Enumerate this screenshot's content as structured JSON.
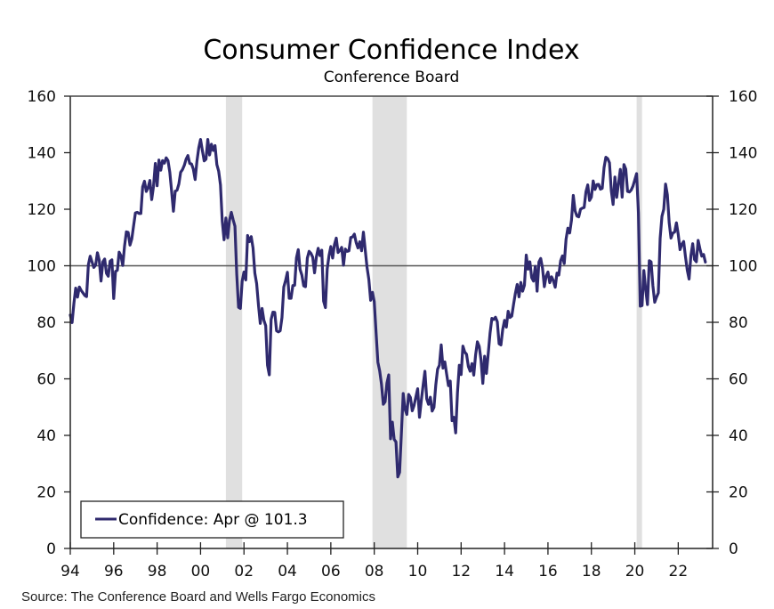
{
  "chart_data": {
    "type": "line",
    "title": "Consumer Confidence Index",
    "subtitle": "Conference Board",
    "source": "Source: The Conference Board and Wells Fargo Economics",
    "xlabel": "",
    "ylabel": "",
    "ylim": [
      0,
      160
    ],
    "yticks": [
      0,
      20,
      40,
      60,
      80,
      100,
      120,
      140,
      160
    ],
    "ytick_labels": [
      "0",
      "20",
      "40",
      "60",
      "80",
      "100",
      "120",
      "140",
      "160"
    ],
    "xlim": [
      "1994-01",
      "2023-08"
    ],
    "xticks": [
      1994,
      1996,
      1998,
      2000,
      2002,
      2004,
      2006,
      2008,
      2010,
      2012,
      2014,
      2016,
      2018,
      2020,
      2022
    ],
    "xtick_labels": [
      "94",
      "96",
      "98",
      "00",
      "02",
      "04",
      "06",
      "08",
      "10",
      "12",
      "14",
      "16",
      "18",
      "20",
      "22"
    ],
    "reference_line": 100,
    "grid": false,
    "dual_y_axis": true,
    "legend": {
      "position": "bottom-left",
      "label": "Confidence: Apr @ 101.3"
    },
    "recessions": [
      {
        "start": "2001-03",
        "end": "2001-11"
      },
      {
        "start": "2007-12",
        "end": "2009-06"
      },
      {
        "start": "2020-02",
        "end": "2020-04"
      }
    ],
    "colors": {
      "series": "#2f2a6e",
      "recession": "#e0e0e0",
      "axis": "#222222"
    },
    "series": [
      {
        "name": "Confidence",
        "start": "1994-01",
        "frequency": "monthly",
        "values": [
          82.6,
          79.9,
          86.7,
          92.1,
          88.9,
          92.5,
          91.3,
          90.4,
          89.5,
          89.1,
          100.4,
          103.4,
          101.4,
          99.4,
          100.2,
          104.6,
          102.0,
          94.6,
          101.4,
          102.4,
          97.3,
          96.3,
          101.6,
          102.1,
          88.4,
          98.0,
          98.4,
          104.8,
          103.5,
          100.1,
          107.0,
          112.0,
          111.8,
          107.3,
          109.5,
          114.2,
          118.7,
          118.9,
          118.5,
          118.5,
          127.9,
          129.9,
          126.3,
          127.6,
          130.2,
          123.4,
          128.1,
          136.2,
          128.3,
          137.4,
          133.8,
          137.2,
          136.3,
          138.2,
          137.2,
          133.1,
          126.4,
          119.3,
          126.4,
          126.7,
          128.9,
          133.1,
          134.0,
          135.5,
          137.7,
          139.0,
          136.2,
          136.0,
          134.2,
          130.5,
          137.0,
          141.7,
          144.7,
          140.8,
          137.1,
          137.7,
          144.7,
          139.2,
          143.0,
          140.8,
          142.5,
          135.8,
          133.5,
          128.6,
          115.7,
          109.2,
          116.9,
          109.9,
          116.1,
          118.9,
          116.3,
          114.0,
          97.0,
          85.3,
          84.9,
          94.6,
          97.8,
          95.0,
          110.7,
          108.5,
          110.3,
          106.3,
          97.4,
          93.7,
          86.1,
          79.6,
          84.9,
          80.7,
          78.8,
          64.8,
          61.4,
          81.0,
          83.6,
          83.5,
          77.0,
          76.6,
          77.0,
          81.7,
          92.5,
          94.8,
          97.7,
          88.5,
          88.5,
          93.0,
          93.1,
          102.8,
          105.7,
          98.7,
          96.7,
          92.9,
          92.6,
          102.7,
          105.1,
          104.4,
          103.0,
          97.5,
          103.1,
          106.2,
          103.6,
          105.5,
          87.5,
          85.2,
          98.9,
          103.6,
          106.8,
          102.7,
          107.5,
          109.8,
          104.7,
          105.4,
          106.5,
          100.2,
          105.9,
          105.1,
          105.3,
          110.0,
          110.2,
          111.2,
          108.2,
          106.3,
          108.5,
          105.3,
          111.9,
          105.6,
          99.5,
          95.2,
          87.8,
          90.6,
          87.3,
          76.4,
          65.9,
          62.8,
          58.1,
          51.0,
          51.9,
          58.5,
          61.4,
          38.8,
          44.7,
          38.6,
          37.7,
          25.3,
          26.9,
          40.8,
          54.8,
          49.3,
          47.4,
          54.5,
          53.4,
          48.7,
          50.6,
          53.6,
          56.5,
          46.4,
          52.3,
          57.7,
          62.7,
          52.9,
          51.0,
          53.5,
          48.6,
          49.9,
          57.8,
          63.4,
          64.8,
          72.0,
          63.8,
          66.0,
          61.7,
          57.6,
          59.2,
          45.2,
          46.4,
          40.9,
          55.2,
          64.8,
          61.5,
          71.6,
          69.5,
          68.7,
          64.4,
          62.7,
          65.4,
          61.3,
          68.4,
          73.1,
          71.5,
          66.7,
          58.4,
          68.0,
          61.9,
          69.0,
          76.2,
          81.4,
          81.0,
          81.8,
          80.2,
          72.4,
          72.0,
          77.5,
          80.7,
          78.3,
          83.9,
          81.7,
          82.2,
          86.4,
          90.3,
          93.4,
          89.0,
          94.1,
          91.0,
          93.1,
          103.8,
          98.8,
          101.4,
          95.8,
          94.6,
          99.8,
          91.0,
          101.3,
          102.6,
          99.1,
          92.6,
          96.3,
          97.8,
          94.0,
          96.1,
          94.7,
          92.4,
          97.4,
          96.7,
          101.8,
          103.5,
          100.8,
          109.4,
          113.3,
          111.6,
          116.1,
          124.9,
          119.4,
          117.6,
          117.3,
          120.0,
          120.4,
          120.6,
          126.2,
          128.6,
          123.1,
          124.3,
          130.0,
          127.0,
          128.7,
          128.8,
          127.1,
          127.4,
          134.7,
          138.4,
          137.9,
          136.4,
          126.6,
          121.7,
          131.4,
          124.2,
          129.2,
          134.1,
          124.3,
          135.8,
          134.2,
          126.3,
          126.1,
          126.8,
          128.2,
          130.4,
          132.6,
          118.8,
          85.7,
          85.9,
          98.3,
          91.7,
          86.3,
          101.8,
          101.4,
          92.9,
          87.1,
          88.9,
          90.4,
          109.7,
          117.5,
          120.0,
          128.9,
          125.1,
          115.2,
          109.8,
          111.6,
          111.9,
          115.2,
          111.1,
          105.7,
          107.6,
          108.6,
          103.2,
          98.4,
          95.3,
          103.6,
          107.8,
          102.2,
          101.4,
          109.0,
          106.0,
          103.4,
          104.0,
          101.3
        ]
      }
    ]
  }
}
